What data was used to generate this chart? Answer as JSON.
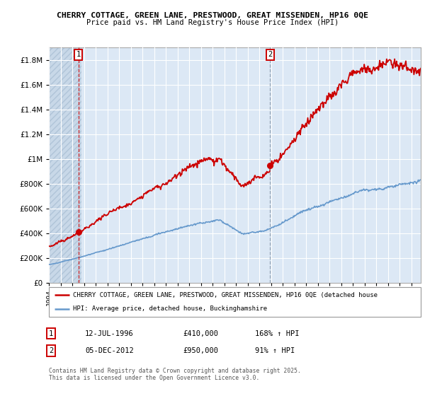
{
  "title1": "CHERRY COTTAGE, GREEN LANE, PRESTWOOD, GREAT MISSENDEN, HP16 0QE",
  "title2": "Price paid vs. HM Land Registry's House Price Index (HPI)",
  "legend_line1": "CHERRY COTTAGE, GREEN LANE, PRESTWOOD, GREAT MISSENDEN, HP16 0QE (detached house",
  "legend_line2": "HPI: Average price, detached house, Buckinghamshire",
  "sale1_date": "12-JUL-1996",
  "sale1_price": "£410,000",
  "sale1_hpi": "168% ↑ HPI",
  "sale2_date": "05-DEC-2012",
  "sale2_price": "£950,000",
  "sale2_hpi": "91% ↑ HPI",
  "footnote": "Contains HM Land Registry data © Crown copyright and database right 2025.\nThis data is licensed under the Open Government Licence v3.0.",
  "sale_color": "#cc0000",
  "hpi_color": "#6699cc",
  "chart_bg": "#dce8f5",
  "hatch_bg": "#c8d8e8",
  "ylim": [
    0,
    1900000
  ],
  "yticks": [
    0,
    200000,
    400000,
    600000,
    800000,
    1000000,
    1200000,
    1400000,
    1600000,
    1800000
  ],
  "ytick_labels": [
    "£0",
    "£200K",
    "£400K",
    "£600K",
    "£800K",
    "£1M",
    "£1.2M",
    "£1.4M",
    "£1.6M",
    "£1.8M"
  ],
  "sale1_year": 1996.53,
  "sale1_value": 410000,
  "sale2_year": 2012.92,
  "sale2_value": 950000,
  "xmin": 1994.0,
  "xmax": 2025.8
}
